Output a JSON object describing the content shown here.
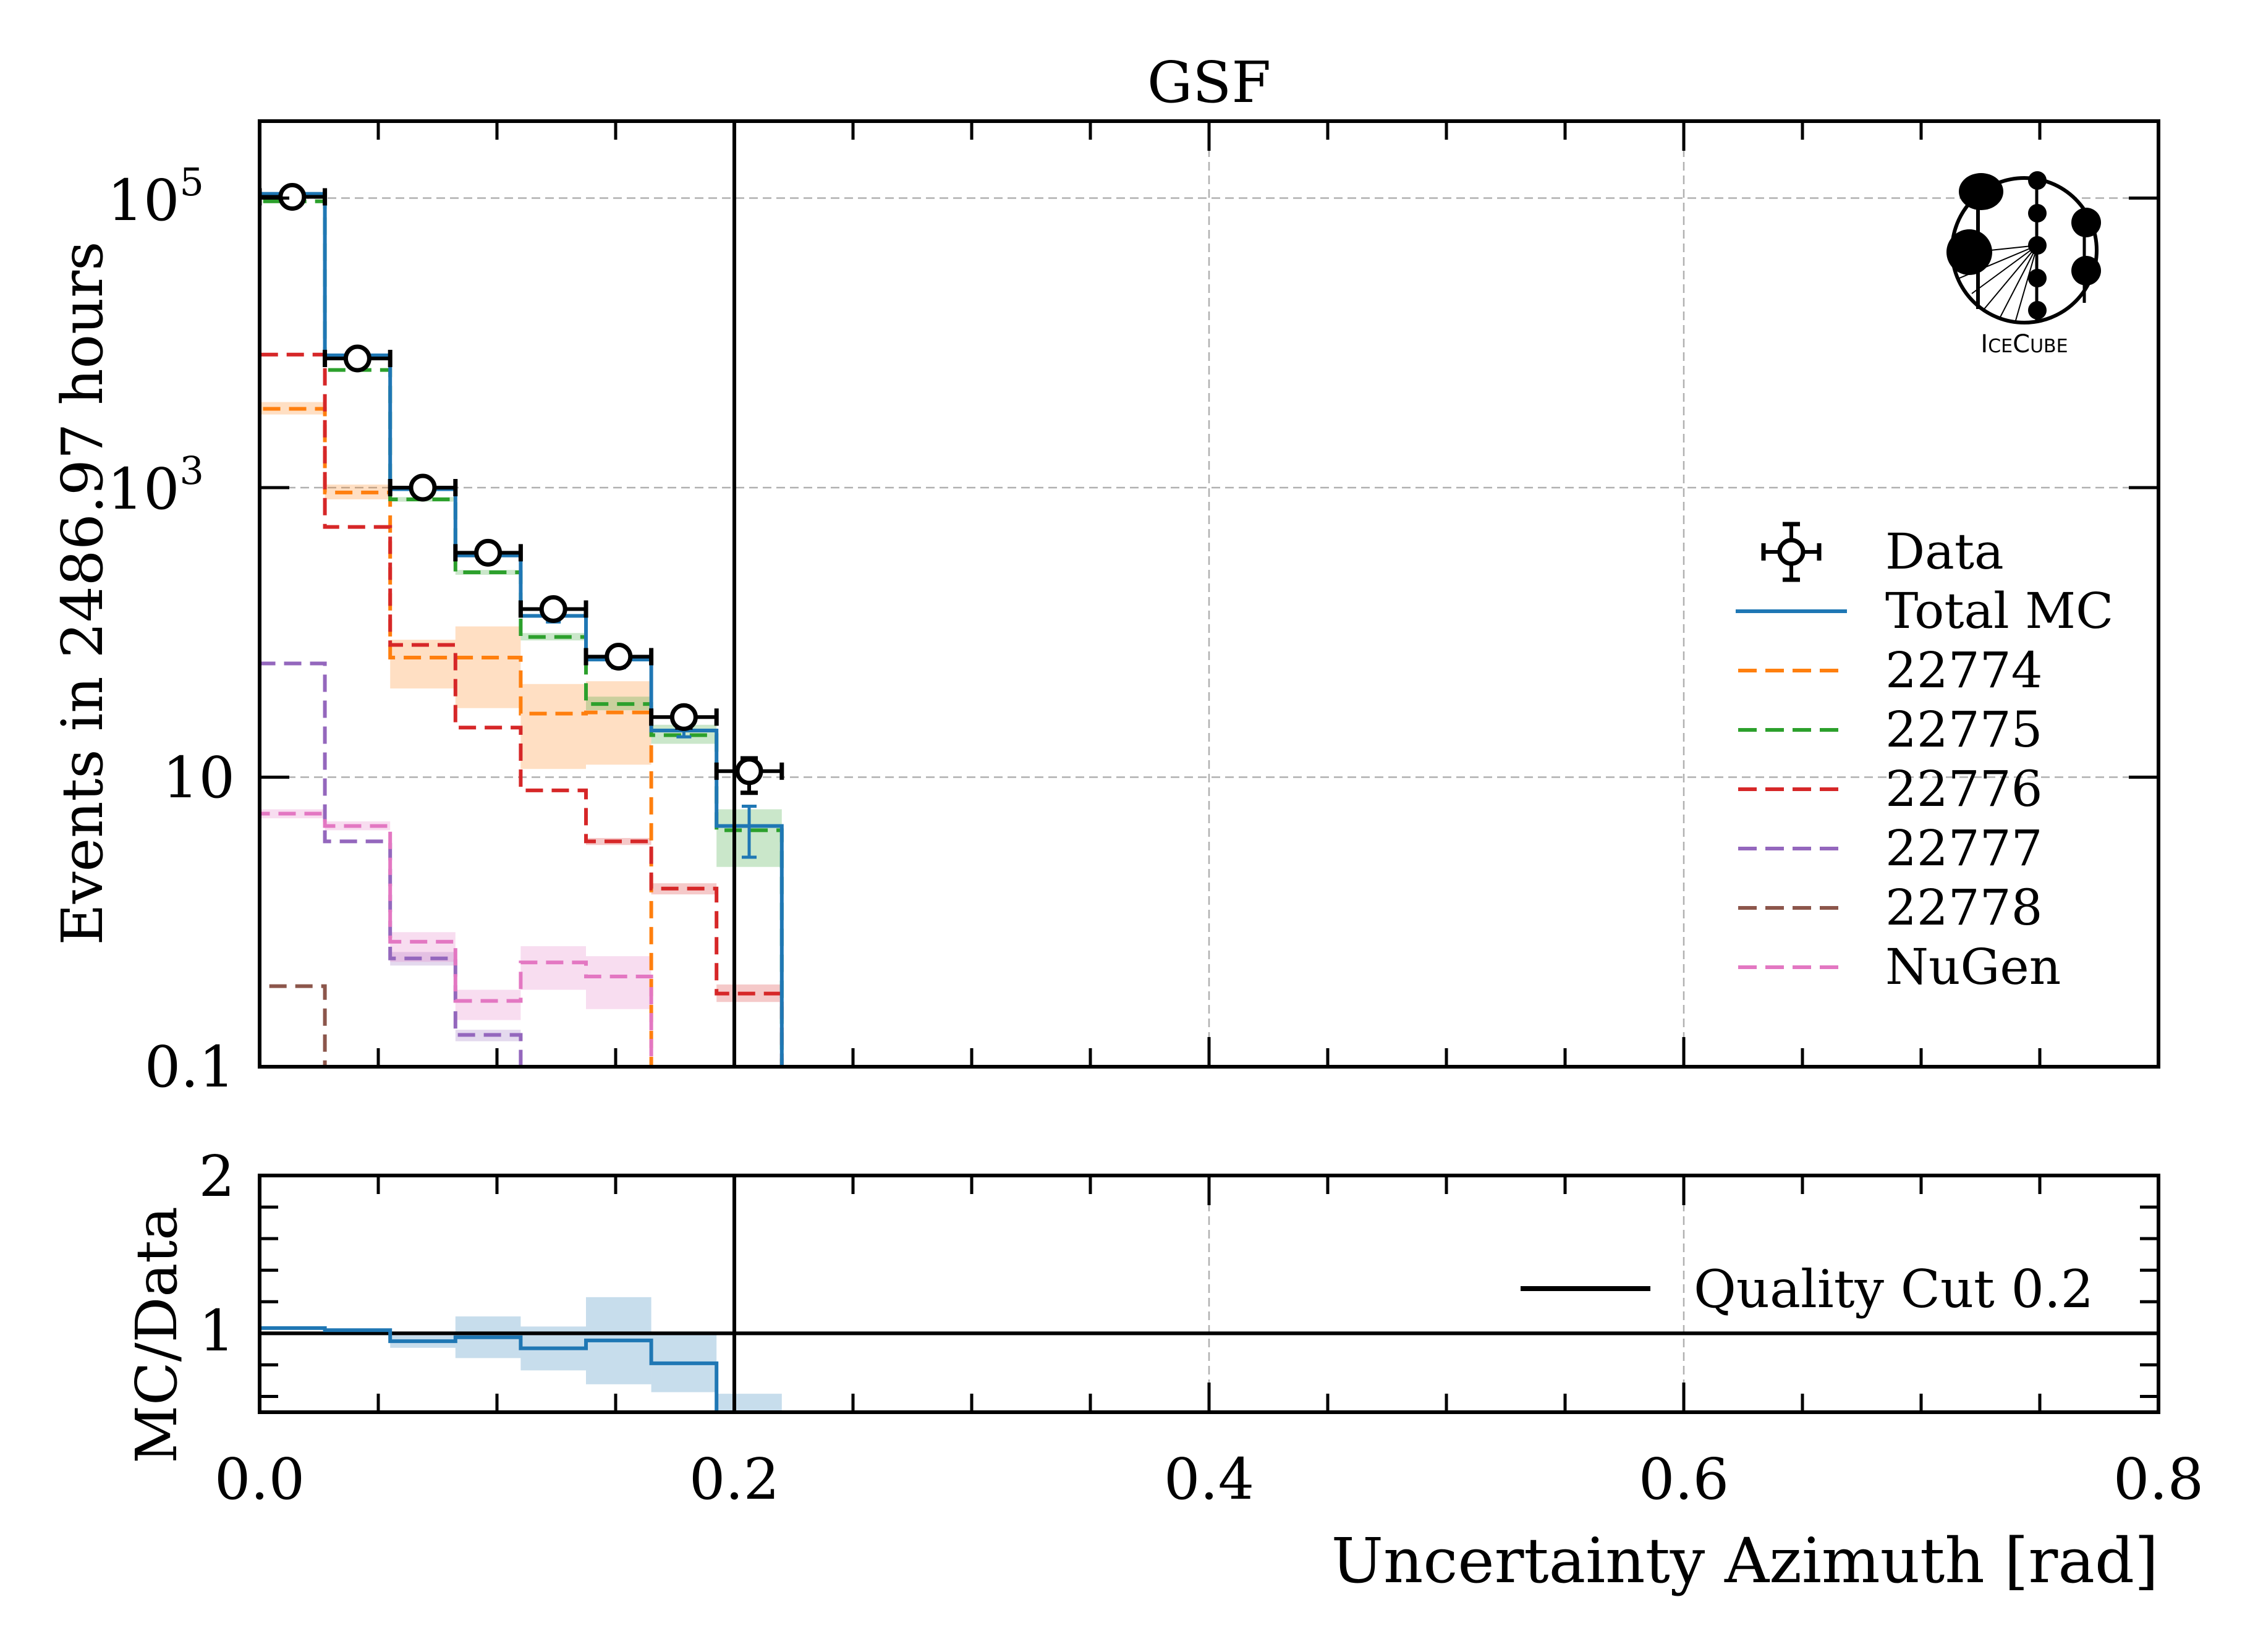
{
  "chart_data": {
    "type": "bar",
    "histogram_style": "step",
    "title": "GSF",
    "xlabel": "Uncertainty Azimuth [rad]",
    "ylabel": "Events in 2486.97 hours",
    "ratio_ylabel": "MC/Data",
    "xlim": [
      0.0,
      0.8
    ],
    "ylim": [
      0.1,
      340000
    ],
    "yscale": "log",
    "ratio_ylim": [
      0.5,
      2.0
    ],
    "grid": true,
    "x_ticks": [
      {
        "value": 0.0,
        "label": "0.0"
      },
      {
        "value": 0.2,
        "label": "0.2"
      },
      {
        "value": 0.4,
        "label": "0.4"
      },
      {
        "value": 0.6,
        "label": "0.6"
      },
      {
        "value": 0.8,
        "label": "0.8"
      }
    ],
    "y_ticks": [
      {
        "value": 100000,
        "base": "10",
        "exp": "5"
      },
      {
        "value": 1000,
        "base": "10",
        "exp": "3"
      },
      {
        "value": 10,
        "base": "10",
        "exp": ""
      },
      {
        "value": 0.1,
        "base": "0.1",
        "exp": ""
      }
    ],
    "ratio_y_ticks": [
      {
        "value": 2,
        "label": "2"
      },
      {
        "value": 1,
        "label": "1"
      }
    ],
    "bin_edges": [
      0.0,
      0.0275,
      0.055,
      0.0825,
      0.11,
      0.1375,
      0.165,
      0.1925,
      0.22
    ],
    "data": {
      "name": "Data",
      "color": "#000000",
      "values": [
        102000,
        7800,
        1000,
        355,
        145,
        68,
        26,
        11
      ],
      "err_low": [
        100800,
        7700,
        970,
        340,
        135,
        60,
        22,
        7.8
      ],
      "err_high": [
        103200,
        7900,
        1030,
        370,
        157,
        76,
        30,
        13.5
      ]
    },
    "series": [
      {
        "name": "Total MC",
        "color": "#1f77b4",
        "style": "solid",
        "values": [
          107000,
          8200,
          976,
          340,
          130,
          65,
          21,
          4.6
        ],
        "err_low": [
          null,
          null,
          null,
          320,
          118,
          57,
          19,
          2.8
        ],
        "err_high": [
          null,
          null,
          null,
          360,
          142,
          73,
          23,
          6.3
        ]
      },
      {
        "name": "22774",
        "color": "#ff7f0e",
        "style": "dashed",
        "values": [
          3500,
          925,
          67,
          67,
          27.5,
          28,
          0,
          0
        ],
        "band_low": [
          3200,
          830,
          41,
          30,
          11.4,
          12.2,
          null,
          null
        ],
        "band_high": [
          3900,
          1050,
          89,
          110,
          44,
          46,
          null,
          null
        ]
      },
      {
        "name": "22775",
        "color": "#2ca02c",
        "style": "dashed",
        "values": [
          95000,
          6500,
          830,
          260,
          93,
          32,
          19.5,
          4.3
        ],
        "band_low": [
          null,
          null,
          800,
          250,
          88,
          29,
          17,
          2.4
        ],
        "band_high": [
          null,
          null,
          860,
          270,
          99,
          36,
          23,
          6.0
        ]
      },
      {
        "name": "22776",
        "color": "#d62728",
        "style": "dashed",
        "values": [
          8300,
          535,
          82,
          22,
          8.1,
          3.6,
          1.7,
          0.32
        ],
        "band_low": [
          null,
          null,
          null,
          null,
          null,
          3.4,
          1.55,
          0.28
        ],
        "band_high": [
          null,
          null,
          null,
          null,
          null,
          3.8,
          1.85,
          0.37
        ]
      },
      {
        "name": "22777",
        "color": "#9467bd",
        "style": "dashed",
        "values": [
          61,
          3.6,
          0.56,
          0.166,
          0,
          0,
          0,
          0
        ],
        "band_low": [
          null,
          null,
          0.5,
          0.15,
          null,
          null,
          null,
          null
        ],
        "band_high": [
          null,
          null,
          0.62,
          0.18,
          null,
          null,
          null,
          null
        ]
      },
      {
        "name": "22778",
        "color": "#8c564b",
        "style": "dashed",
        "values": [
          0.36,
          0,
          0,
          0,
          0,
          0,
          0,
          0
        ]
      },
      {
        "name": "NuGen",
        "color": "#e377c2",
        "style": "dashed",
        "values": [
          5.6,
          4.6,
          0.73,
          0.285,
          0.525,
          0.42,
          0,
          0
        ],
        "band_low": [
          5.2,
          4.3,
          0.53,
          0.21,
          0.34,
          0.25,
          null,
          null
        ],
        "band_high": [
          6.0,
          4.95,
          0.85,
          0.34,
          0.68,
          0.58,
          null,
          null
        ]
      }
    ],
    "ratio": {
      "name": "MC/Data",
      "color": "#1f77b4",
      "values": [
        1.033,
        1.02,
        0.95,
        0.975,
        0.905,
        0.955,
        0.81,
        0
      ],
      "band_low": [
        null,
        null,
        0.908,
        0.843,
        0.765,
        0.677,
        0.627,
        0.5
      ],
      "band_high": [
        null,
        null,
        0.987,
        1.107,
        1.043,
        1.229,
        0.99,
        0.617
      ]
    },
    "reference_line": {
      "value": 1,
      "color": "#000000"
    },
    "cut_line": {
      "x": 0.2,
      "label": "Quality Cut 0.2",
      "color": "#000000"
    },
    "legend": {
      "placement": "center-right",
      "entries": [
        "Data",
        "Total MC",
        "22774",
        "22775",
        "22776",
        "22777",
        "22778",
        "NuGen"
      ]
    },
    "ratio_legend": {
      "placement": "upper-right",
      "entries": [
        "Quality Cut 0.2"
      ]
    }
  },
  "logo": {
    "text": "IceCube",
    "text_prefix_big": "I",
    "text_small_1": "CE",
    "text_big_2": "C",
    "text_small_2": "UBE"
  }
}
